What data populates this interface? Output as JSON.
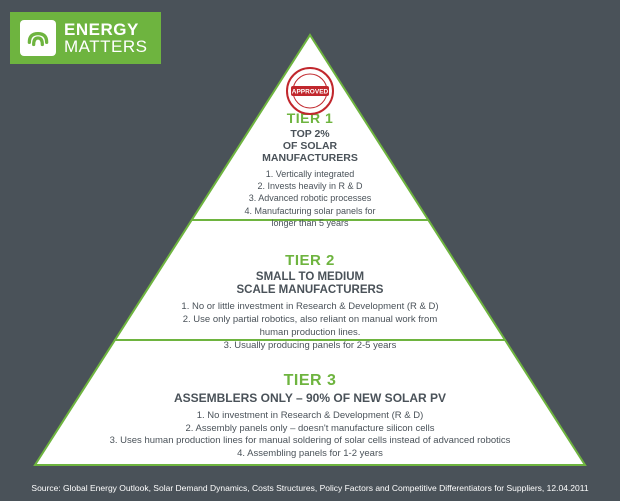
{
  "logo": {
    "line1": "ENERGY",
    "line2": "MATTERS",
    "bg_color": "#6eb43f",
    "icon_bg": "#ffffff",
    "icon_color": "#6eb43f"
  },
  "stamp": {
    "text": "APPROVED",
    "ring_color": "#c1272d",
    "bg_color": "#ffffff"
  },
  "pyramid": {
    "fill": "#ffffff",
    "stroke": "#6eb43f",
    "stroke_width": 2,
    "divider_color": "#6eb43f"
  },
  "tiers": [
    {
      "title": "TIER 1",
      "subtitle": "TOP 2%\nOF SOLAR\nMANUFACTURERS",
      "points": [
        "1. Vertically integrated",
        "2. Invests heavily in R & D",
        "3. Advanced robotic processes",
        "4. Manufacturing solar panels for",
        "longer than 5 years"
      ]
    },
    {
      "title": "TIER 2",
      "subtitle": "SMALL TO MEDIUM\nSCALE MANUFACTURERS",
      "points": [
        "1. No or little investment in Research & Development (R & D)",
        "2. Use only partial robotics, also reliant on manual work from",
        "human production lines.",
        "3. Usually producing panels for 2-5 years"
      ]
    },
    {
      "title": "TIER 3",
      "subtitle": "ASSEMBLERS ONLY – 90% OF NEW SOLAR PV",
      "points": [
        "1. No investment in Research & Development (R & D)",
        "2. Assembly panels only – doesn't manufacture silicon cells",
        "3. Uses human production lines for manual soldering of solar cells instead of advanced robotics",
        "4. Assembling panels for 1-2 years"
      ]
    }
  ],
  "source": "Source: Global Energy Outlook, Solar Demand Dynamics, Costs Structures, Policy Factors  and Competitive Differentiators for Suppliers, 12.04.2011",
  "colors": {
    "page_bg": "#4a5259",
    "accent": "#6eb43f",
    "body_text": "#4a5259",
    "source_text": "#ffffff"
  }
}
